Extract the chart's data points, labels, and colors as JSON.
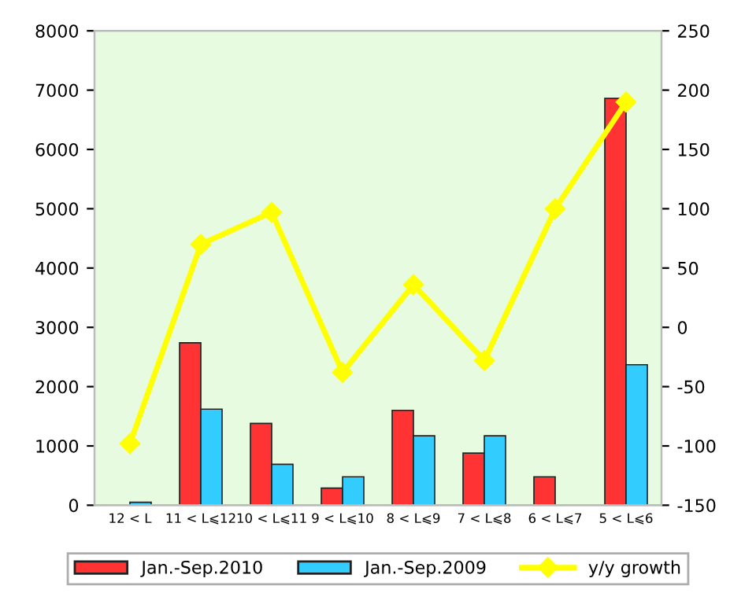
{
  "chart_data": {
    "type": "bar",
    "categories": [
      "12 < L",
      "11 < L⩽12",
      "10 < L⩽11",
      "9 < L⩽10",
      "8 < L⩽9",
      "7 < L⩽8",
      "6 < L⩽7",
      "5 < L⩽6"
    ],
    "series": [
      {
        "name": "Jan.-Sep.2010",
        "color": "#ff3333",
        "values": [
          0,
          2740,
          1380,
          290,
          1600,
          880,
          480,
          6860
        ]
      },
      {
        "name": "Jan.-Sep.2009",
        "color": "#33ccff",
        "values": [
          50,
          1620,
          690,
          480,
          1170,
          1170,
          0,
          2370
        ]
      },
      {
        "name": "y/y growth",
        "type": "line",
        "axis": "y2",
        "color": "#ffff00",
        "marker": "diamond",
        "values": [
          -98,
          70,
          97,
          -38,
          36,
          -28,
          100,
          190
        ]
      }
    ],
    "ylim": [
      0,
      8000
    ],
    "yticks": [
      0,
      1000,
      2000,
      3000,
      4000,
      5000,
      6000,
      7000,
      8000
    ],
    "y2lim": [
      -150,
      250
    ],
    "y2ticks": [
      -150,
      -100,
      -50,
      0,
      50,
      100,
      150,
      200,
      250
    ],
    "grid": false,
    "legend": "bottom"
  }
}
